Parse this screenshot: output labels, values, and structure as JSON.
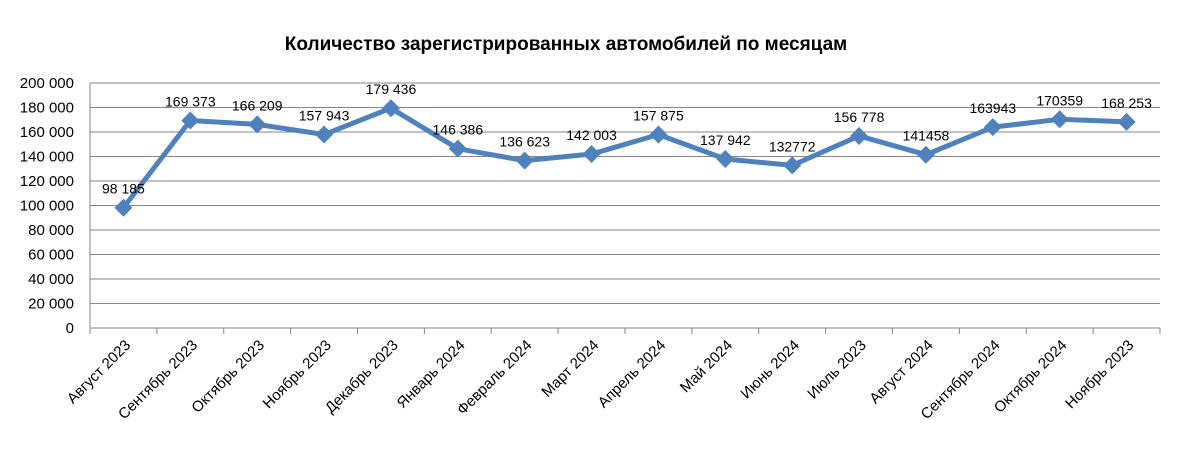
{
  "chart_data": {
    "type": "line",
    "title": "Количество зарегистрированных автомобилей по месяцам",
    "xlabel": "",
    "ylabel": "",
    "categories": [
      "Август 2023",
      "Сентябрь 2023",
      "Октябрь 2023",
      "Ноябрь 2023",
      "Декабрь 2023",
      "Январь 2024",
      "Февраль 2024",
      "Март 2024",
      "Апрель 2024",
      "Май 2024",
      "Июнь 2024",
      "Июль 2023",
      "Август 2024",
      "Сентябрь 2024",
      "Октябрь 2024",
      "Ноябрь 2023"
    ],
    "series": [
      {
        "values": [
          98185,
          169373,
          166209,
          157943,
          179436,
          146386,
          136623,
          142003,
          157875,
          137942,
          132772,
          156778,
          141458,
          163943,
          170359,
          168253
        ],
        "labels": [
          "98 185",
          "169 373",
          "166 209",
          "157 943",
          "179 436",
          "146 386",
          "136 623",
          "142 003",
          "157 875",
          "137 942",
          "132772",
          "156 778",
          "141458",
          "163943",
          "170359",
          "168 253"
        ],
        "color": "#4f81bd"
      }
    ],
    "ylim": [
      0,
      200000
    ],
    "yticks": [
      0,
      20000,
      40000,
      60000,
      80000,
      100000,
      120000,
      140000,
      160000,
      180000,
      200000
    ],
    "ytick_labels": [
      "0",
      "20 000",
      "40 000",
      "60 000",
      "80 000",
      "100 000",
      "120 000",
      "140 000",
      "160 000",
      "180 000",
      "200 000"
    ],
    "grid": true,
    "legend": "none",
    "gridline_color": "#868686",
    "marker": "diamond"
  }
}
